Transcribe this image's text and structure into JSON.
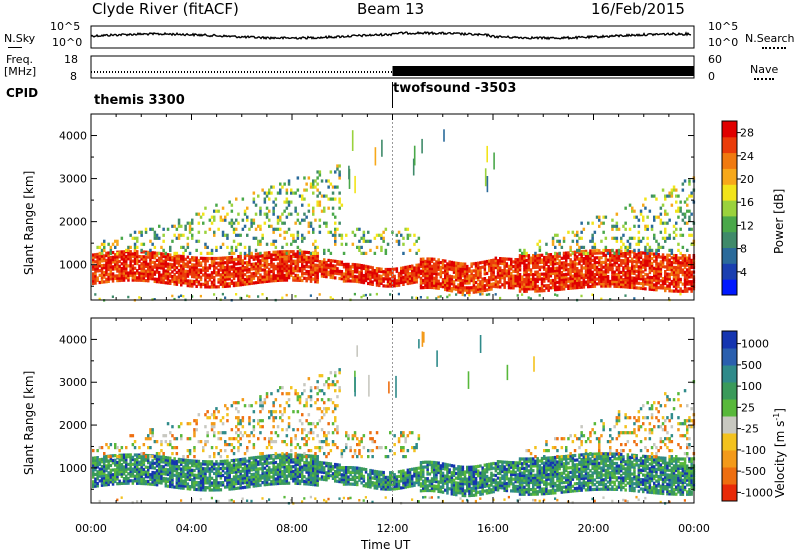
{
  "header": {
    "station": "Clyde River (fitACF)",
    "beam": "Beam 13",
    "date": "16/Feb/2015"
  },
  "meta_panels": {
    "nsky_label": "N.Sky",
    "nsky_ticks": [
      "10^5",
      "10^0"
    ],
    "nsearch_label": "N.Search",
    "nsearch_ticks": [
      "10^5",
      "10^0"
    ],
    "freq_label": "Freq.",
    "freq_unit": "[MHz]",
    "freq_ticks": [
      "18",
      "8"
    ],
    "nave_label": "Nave",
    "nave_ticks": [
      "60",
      "0"
    ],
    "cpid_label": "CPID",
    "cpid_segments": [
      {
        "name": "themis 3300",
        "start_hour": 0
      },
      {
        "name": "twofsound -3503",
        "start_hour": 12
      }
    ]
  },
  "chart_data": [
    {
      "type": "heatmap",
      "name": "power",
      "ylabel": "Slant Range [km]",
      "xlabel": "",
      "ylim": [
        180,
        4500
      ],
      "yticks": [
        1000,
        2000,
        3000,
        4000
      ],
      "colorbar": {
        "label": "Power [dB]",
        "ticks": [
          "4",
          "8",
          "12",
          "16",
          "20",
          "24",
          "28"
        ],
        "range": [
          0,
          30
        ],
        "colors": [
          "#0018ff",
          "#1a3fb0",
          "#2a6a9a",
          "#3f8a6a",
          "#4aa84a",
          "#9ad23c",
          "#f2e41a",
          "#f7a81a",
          "#f07a10",
          "#ea3c0a",
          "#e00000"
        ]
      }
    },
    {
      "type": "heatmap",
      "name": "velocity",
      "ylabel": "Slant Range [km]",
      "xlabel": "Time UT",
      "ylim": [
        180,
        4500
      ],
      "yticks": [
        1000,
        2000,
        3000,
        4000
      ],
      "xticks": [
        "00:00",
        "04:00",
        "08:00",
        "12:00",
        "16:00",
        "20:00",
        "00:00"
      ],
      "xrange_hours": [
        0,
        24
      ],
      "colorbar": {
        "label": "Velocity [m s",
        "label_sup": "-1",
        "label_end": "]",
        "ticks": [
          "1000",
          "500",
          "100",
          "25",
          "-25",
          "-100",
          "-500",
          "-1000"
        ],
        "colors": [
          "#1535b0",
          "#2a5fae",
          "#2f8a8a",
          "#3a9a5a",
          "#58b83a",
          "#c8c8c0",
          "#f3c21e",
          "#f39a1a",
          "#ee6e10",
          "#e82a08"
        ]
      }
    }
  ],
  "echo_colors": {
    "power_near": [
      "#e00000",
      "#ea3c0a",
      "#f07a10",
      "#ea3c0a",
      "#e00000"
    ],
    "power_mid": [
      "#4aa84a",
      "#3f8a6a",
      "#f2e41a",
      "#f7a81a",
      "#2a6a9a",
      "#9ad23c"
    ],
    "velocity_near": [
      "#3a9a5a",
      "#2f8a8a",
      "#58b83a",
      "#3a9a5a",
      "#1535b0"
    ],
    "velocity_mid": [
      "#c8c8c0",
      "#ee6e10",
      "#f39a1a",
      "#58b83a",
      "#2f8a8a",
      "#f3c21e"
    ]
  }
}
